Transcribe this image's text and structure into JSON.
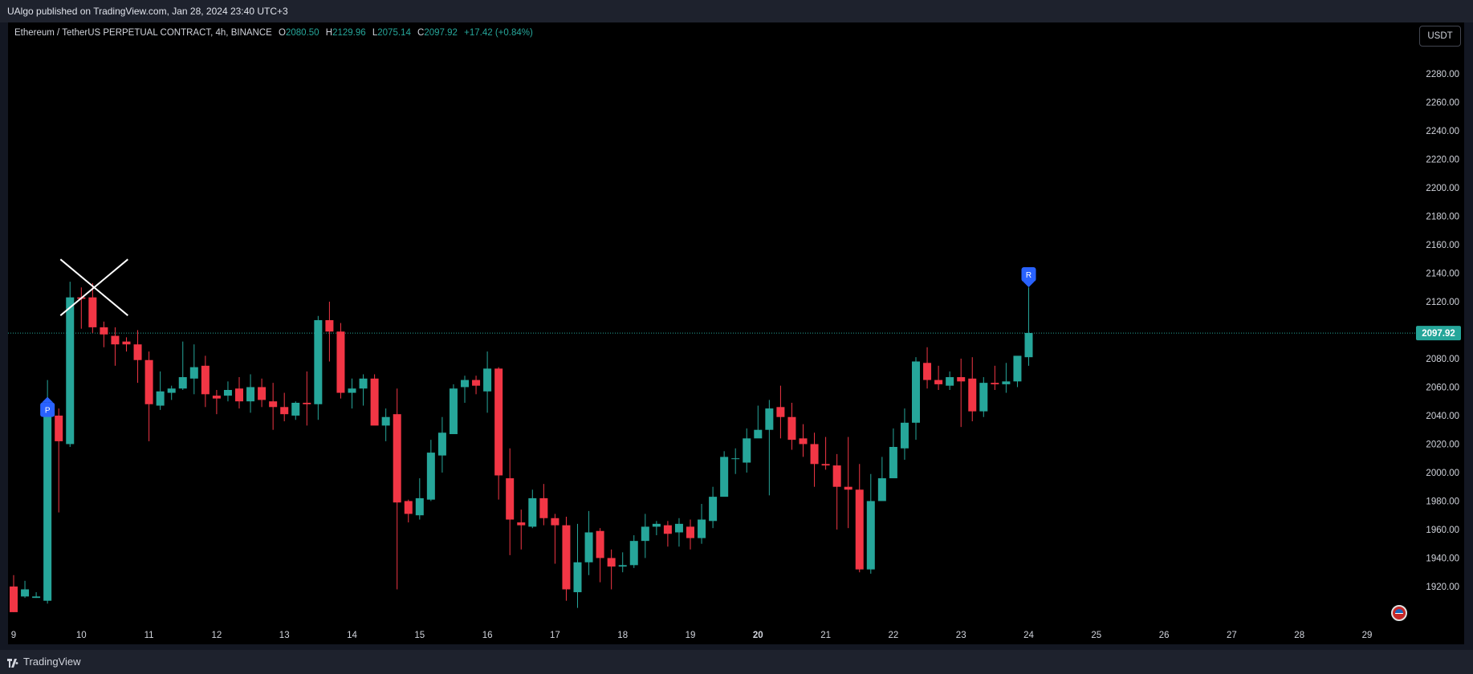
{
  "header": {
    "published": "UAlgo published on TradingView.com, Jan 28, 2024 23:40 UTC+3"
  },
  "legend": {
    "symbol": "Ethereum / TetherUS PERPETUAL CONTRACT, 4h, BINANCE",
    "o_label": "O",
    "o": "2080.50",
    "h_label": "H",
    "h": "2129.96",
    "l_label": "L",
    "l": "2075.14",
    "c_label": "C",
    "c": "2097.92",
    "change": "+17.42 (+0.84%)"
  },
  "currency_button": "USDT",
  "footer": {
    "brand": "TradingView"
  },
  "colors": {
    "up": "#26a69a",
    "down": "#f23645",
    "background": "#000000",
    "marker": "#2962ff"
  },
  "chart_data": {
    "type": "candlestick",
    "title": "",
    "ylim": [
      1898,
      2298
    ],
    "y_ticks": [
      "2280.00",
      "2260.00",
      "2240.00",
      "2220.00",
      "2200.00",
      "2180.00",
      "2160.00",
      "2140.00",
      "2120.00",
      "2100.00",
      "2080.00",
      "2060.00",
      "2040.00",
      "2020.00",
      "2000.00",
      "1980.00",
      "1960.00",
      "1940.00",
      "1920.00"
    ],
    "x_ticks": [
      {
        "label": "9",
        "bar": 0
      },
      {
        "label": "10",
        "bar": 6
      },
      {
        "label": "11",
        "bar": 12
      },
      {
        "label": "12",
        "bar": 18
      },
      {
        "label": "13",
        "bar": 24
      },
      {
        "label": "14",
        "bar": 30
      },
      {
        "label": "15",
        "bar": 36
      },
      {
        "label": "16",
        "bar": 42
      },
      {
        "label": "17",
        "bar": 48
      },
      {
        "label": "18",
        "bar": 54
      },
      {
        "label": "19",
        "bar": 60
      },
      {
        "label": "20",
        "bar": 66
      },
      {
        "label": "21",
        "bar": 72
      },
      {
        "label": "22",
        "bar": 78
      },
      {
        "label": "23",
        "bar": 84
      },
      {
        "label": "24",
        "bar": 90
      },
      {
        "label": "25",
        "bar": 96
      },
      {
        "label": "26",
        "bar": 102
      },
      {
        "label": "27",
        "bar": 108
      },
      {
        "label": "28",
        "bar": 114
      },
      {
        "label": "29",
        "bar": 120
      }
    ],
    "candles": [
      [
        1920,
        1902,
        1928,
        1902
      ],
      [
        1913,
        1918,
        1924,
        1912
      ],
      [
        1912,
        1913,
        1916,
        1912
      ],
      [
        1910,
        2040,
        2065,
        1908
      ],
      [
        2040,
        2022,
        2045,
        1972
      ],
      [
        2020,
        2123,
        2134,
        2018
      ],
      [
        2123,
        2122,
        2130,
        2101
      ],
      [
        2123,
        2102,
        2133,
        2098
      ],
      [
        2102,
        2097,
        2106,
        2088
      ],
      [
        2096,
        2090,
        2102,
        2075
      ],
      [
        2092,
        2090,
        2095,
        2085
      ],
      [
        2090,
        2079,
        2100,
        2063
      ],
      [
        2079,
        2048,
        2085,
        2022
      ],
      [
        2047,
        2057,
        2071,
        2044
      ],
      [
        2056,
        2059,
        2061,
        2051
      ],
      [
        2059,
        2067,
        2092,
        2058
      ],
      [
        2066,
        2074,
        2090,
        2055
      ],
      [
        2075,
        2055,
        2082,
        2046
      ],
      [
        2054,
        2052,
        2058,
        2041
      ],
      [
        2054,
        2058,
        2064,
        2050
      ],
      [
        2059,
        2050,
        2067,
        2045
      ],
      [
        2050,
        2060,
        2069,
        2042
      ],
      [
        2060,
        2051,
        2066,
        2046
      ],
      [
        2050,
        2046,
        2063,
        2030
      ],
      [
        2046,
        2041,
        2056,
        2036
      ],
      [
        2040,
        2049,
        2050,
        2037
      ],
      [
        2049,
        2048,
        2071,
        2033
      ],
      [
        2048,
        2107,
        2110,
        2037
      ],
      [
        2107,
        2099,
        2120,
        2078
      ],
      [
        2099,
        2056,
        2105,
        2052
      ],
      [
        2056,
        2059,
        2066,
        2045
      ],
      [
        2059,
        2066,
        2069,
        2047
      ],
      [
        2066,
        2033,
        2069,
        2039
      ],
      [
        2033,
        2039,
        2045,
        2022
      ],
      [
        2041,
        1979,
        2059,
        1918
      ],
      [
        1980,
        1971,
        1981,
        1965
      ],
      [
        1970,
        1982,
        1996,
        1967
      ],
      [
        1981,
        2014,
        2023,
        1980
      ],
      [
        2012,
        2028,
        2039,
        2000
      ],
      [
        2027,
        2059,
        2062,
        2029
      ],
      [
        2060,
        2065,
        2068,
        2049
      ],
      [
        2065,
        2061,
        2068,
        2055
      ],
      [
        2057,
        2073,
        2085,
        2042
      ],
      [
        2073,
        1998,
        2074,
        1981
      ],
      [
        1996,
        1967,
        2017,
        1942
      ],
      [
        1965,
        1963,
        1974,
        1946
      ],
      [
        1962,
        1982,
        1988,
        1961
      ],
      [
        1982,
        1968,
        1992,
        1963
      ],
      [
        1968,
        1963,
        1971,
        1936
      ],
      [
        1963,
        1918,
        1969,
        1910
      ],
      [
        1916,
        1937,
        1964,
        1905
      ],
      [
        1937,
        1958,
        1973,
        1928
      ],
      [
        1959,
        1940,
        1961,
        1923
      ],
      [
        1940,
        1934,
        1946,
        1918
      ],
      [
        1934,
        1935,
        1944,
        1930
      ],
      [
        1935,
        1952,
        1956,
        1933
      ],
      [
        1952,
        1962,
        1971,
        1940
      ],
      [
        1962,
        1964,
        1966,
        1956
      ],
      [
        1963,
        1957,
        1966,
        1948
      ],
      [
        1958,
        1964,
        1968,
        1948
      ],
      [
        1962,
        1954,
        1967,
        1946
      ],
      [
        1954,
        1967,
        1978,
        1950
      ],
      [
        1966,
        1983,
        1990,
        1961
      ],
      [
        1983,
        2011,
        2015,
        1987
      ],
      [
        2010,
        2010,
        2017,
        1999
      ],
      [
        2007,
        2024,
        2031,
        2000
      ],
      [
        2024,
        2030,
        2047,
        2025
      ],
      [
        2030,
        2045,
        2051,
        1984
      ],
      [
        2046,
        2039,
        2061,
        2024
      ],
      [
        2039,
        2023,
        2049,
        2016
      ],
      [
        2024,
        2020,
        2034,
        2011
      ],
      [
        2020,
        2006,
        2028,
        1990
      ],
      [
        2006,
        2005,
        2025,
        2002
      ],
      [
        2005,
        1990,
        2013,
        1960
      ],
      [
        1990,
        1988,
        2025,
        1961
      ],
      [
        1988,
        1932,
        2006,
        1930
      ],
      [
        1932,
        1980,
        1999,
        1929
      ],
      [
        1980,
        1996,
        2011,
        1982
      ],
      [
        1996,
        2018,
        2031,
        2001
      ],
      [
        2017,
        2035,
        2045,
        2009
      ],
      [
        2035,
        2078,
        2081,
        2023
      ],
      [
        2077,
        2065,
        2088,
        2059
      ],
      [
        2065,
        2062,
        2075,
        2058
      ],
      [
        2061,
        2067,
        2071,
        2058
      ],
      [
        2067,
        2064,
        2080,
        2032
      ],
      [
        2066,
        2043,
        2081,
        2036
      ],
      [
        2043,
        2063,
        2067,
        2039
      ],
      [
        2063,
        2062,
        2075,
        2058
      ],
      [
        2062,
        2064,
        2077,
        2056
      ],
      [
        2064,
        2082,
        2079,
        2060
      ],
      [
        2081,
        2098,
        2130,
        2075
      ]
    ],
    "last_price": "2097.92",
    "signals": [
      {
        "label": "P",
        "bar": 3,
        "price": 2043,
        "direction": "below"
      },
      {
        "label": "R",
        "bar": 90,
        "price": 2138,
        "direction": "above"
      }
    ],
    "x_mark": {
      "bar": 6,
      "price": 2130
    }
  }
}
